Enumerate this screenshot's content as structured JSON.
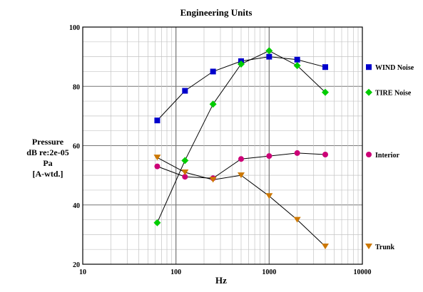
{
  "chart_data": {
    "type": "line",
    "title": "Engineering Units",
    "xlabel": "Hz",
    "ylabel": [
      "Pressure",
      "dB re:2e-05",
      "Pa",
      "[A-wtd.]"
    ],
    "x_scale": "log",
    "xlim": [
      10,
      10000
    ],
    "ylim": [
      20,
      100
    ],
    "x_ticks": [
      "10",
      "100",
      "1000",
      "10000"
    ],
    "y_ticks": [
      "20",
      "40",
      "60",
      "80",
      "100"
    ],
    "grid": true,
    "legend_position": "right",
    "x": [
      63,
      125,
      250,
      500,
      1000,
      2000,
      4000
    ],
    "series": [
      {
        "name": "WIND Noise",
        "color": "#0000cc",
        "marker": "square",
        "values": [
          68.5,
          78.5,
          85,
          88.5,
          90,
          89,
          86.5
        ]
      },
      {
        "name": "TIRE Noise",
        "color": "#00cc00",
        "marker": "diamond",
        "values": [
          34,
          55,
          74,
          87.5,
          92,
          87,
          78
        ]
      },
      {
        "name": "Interior",
        "color": "#cc0077",
        "marker": "circle",
        "values": [
          53,
          49.5,
          49,
          55.5,
          56.5,
          57.5,
          57
        ]
      },
      {
        "name": "Trunk",
        "color": "#cc7700",
        "marker": "triangle-down",
        "values": [
          56,
          51,
          48.5,
          50,
          43,
          35,
          26
        ]
      }
    ]
  }
}
